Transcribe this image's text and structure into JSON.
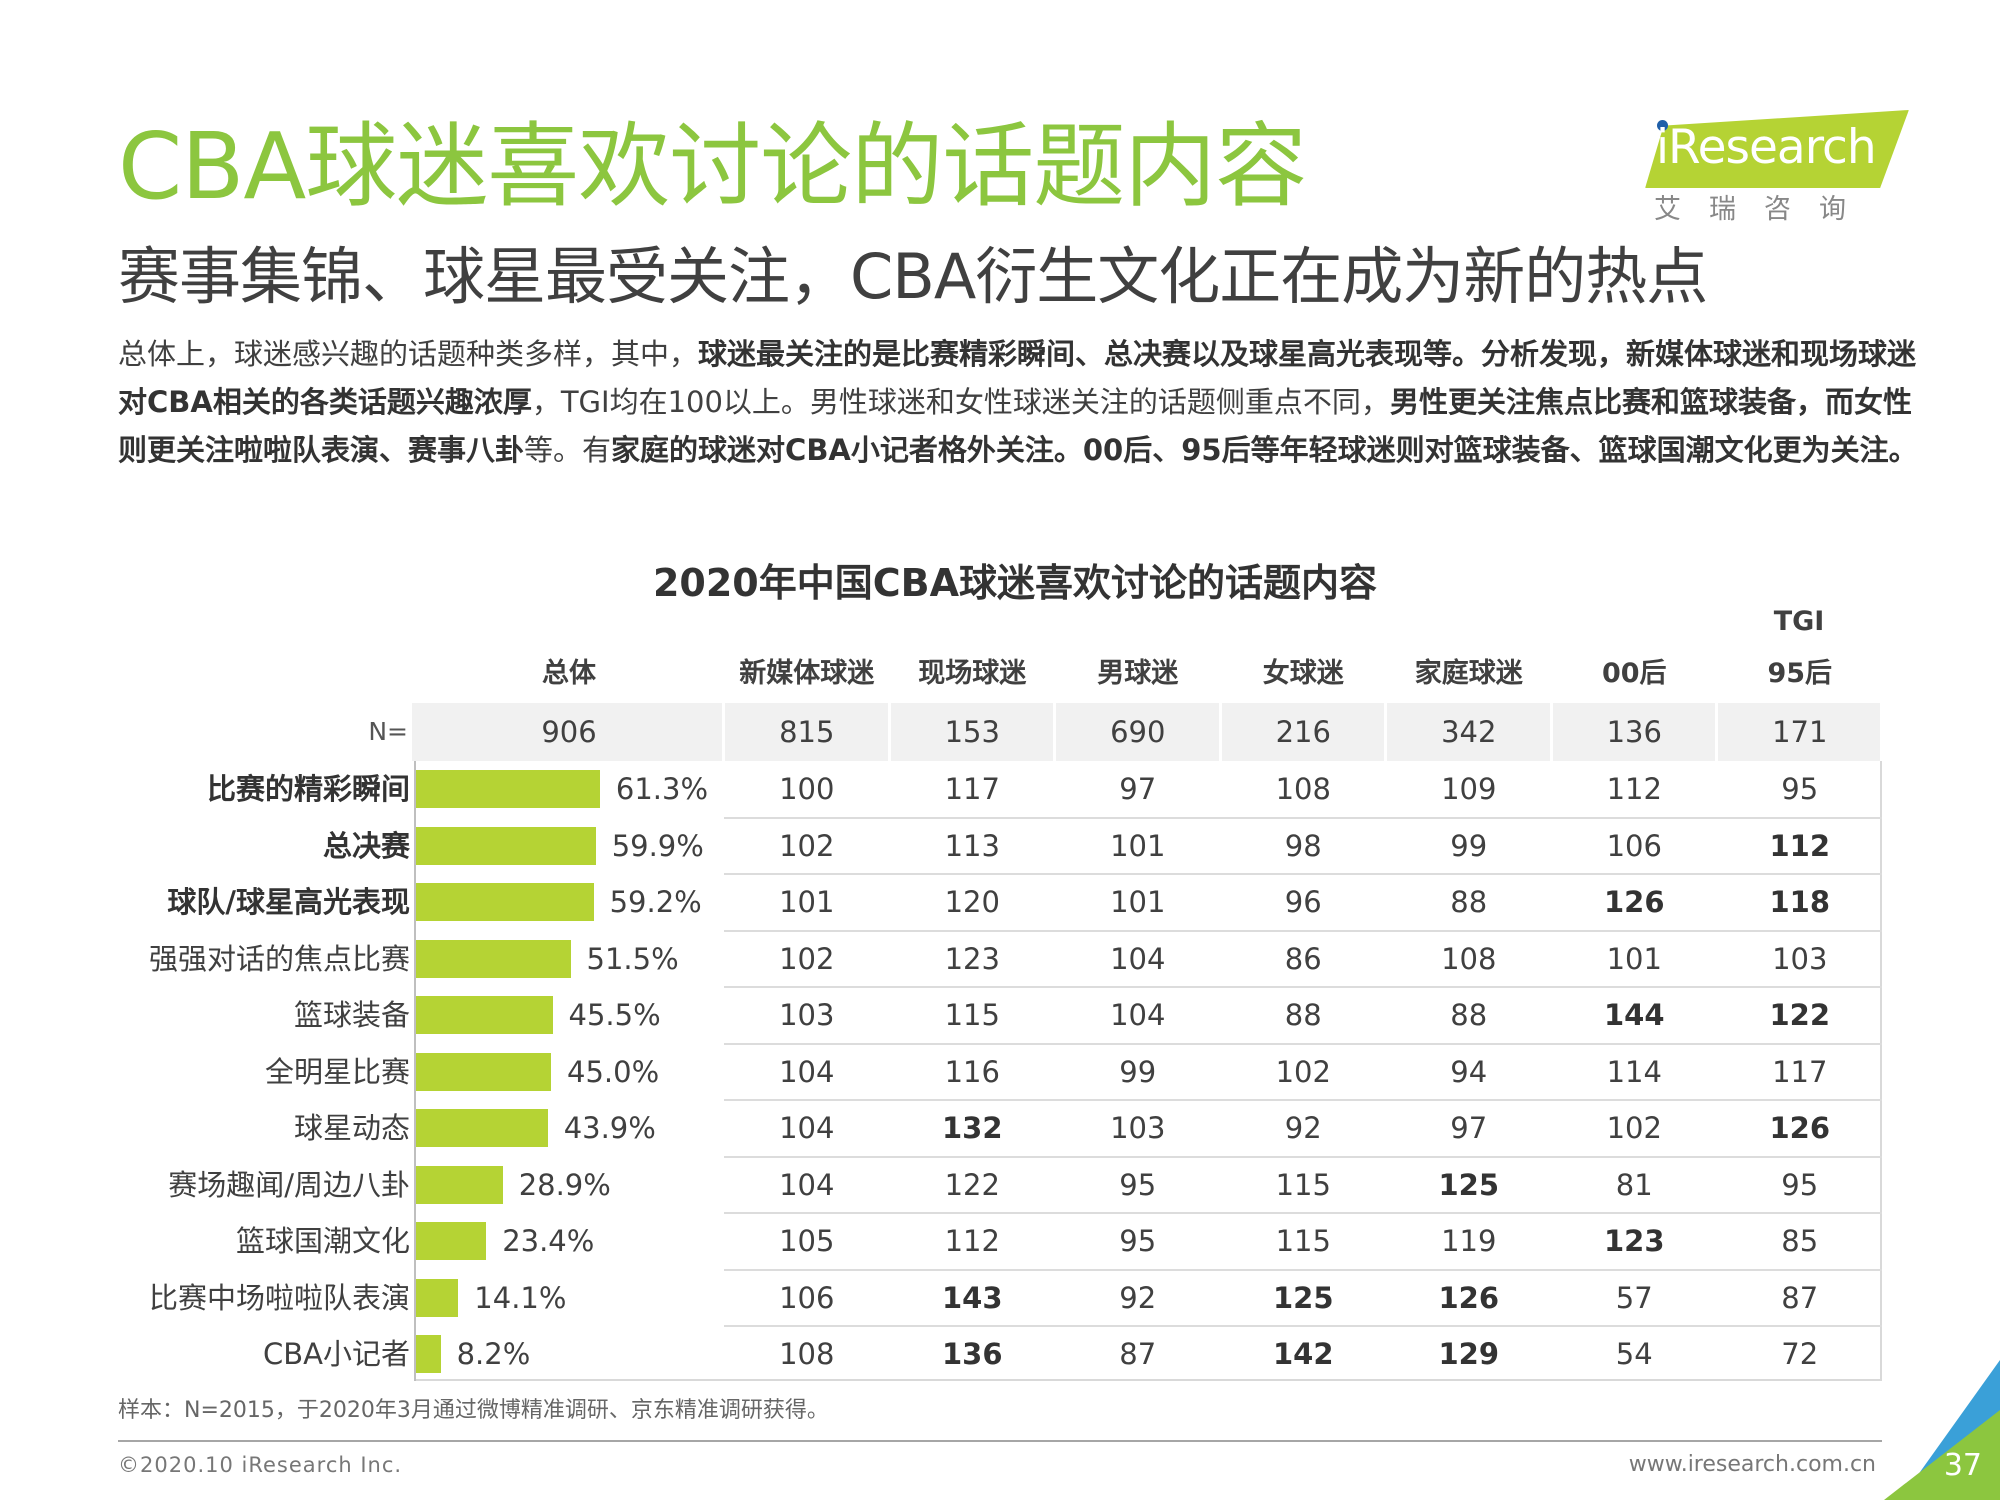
{
  "header": {
    "title": "CBA球迷喜欢讨论的话题内容",
    "subtitle": "赛事集锦、球星最受关注，CBA衍生文化正在成为新的热点"
  },
  "logo": {
    "name": "iResearch",
    "chinese": "艾瑞咨询"
  },
  "intro": {
    "p1": "总体上，球迷感兴趣的话题种类多样，其中，",
    "b1": "球迷最关注的是比赛精彩瞬间、总决赛以及球星高光表现等。分析发现，新媒体球迷和现场球迷对CBA相关的各类话题兴趣浓厚",
    "p2": "，TGI均在100以上。男性球迷和女性球迷关注的话题侧重点不同，",
    "b2": "男性更关注焦点比赛和篮球装备，而女性则更关注啦啦队表演、赛事八卦",
    "p3": "等。有",
    "b3": "家庭的球迷对CBA小记者格外关注。00后、95后等年轻球迷则对篮球装备、篮球国潮文化更为关注。"
  },
  "chart_data": {
    "type": "table",
    "title": "2020年中国CBA球迷喜欢讨论的话题内容",
    "group_label": "TGI",
    "n_label": "N=",
    "overall": {
      "name": "总体",
      "n": "906"
    },
    "columns": [
      "新媒体球迷",
      "现场球迷",
      "男球迷",
      "女球迷",
      "家庭球迷",
      "00后",
      "95后"
    ],
    "column_n": [
      "815",
      "153",
      "690",
      "216",
      "342",
      "136",
      "171"
    ],
    "bar_max": 100,
    "rows": [
      {
        "label": "比赛的精彩瞬间",
        "bold": true,
        "value": 61.3,
        "value_label": "61.3%",
        "tgi": [
          100,
          117,
          97,
          108,
          109,
          112,
          95
        ],
        "bold_cells": []
      },
      {
        "label": "总决赛",
        "bold": true,
        "value": 59.9,
        "value_label": "59.9%",
        "tgi": [
          102,
          113,
          101,
          98,
          99,
          106,
          112
        ],
        "bold_cells": [
          6
        ]
      },
      {
        "label": "球队/球星高光表现",
        "bold": true,
        "value": 59.2,
        "value_label": "59.2%",
        "tgi": [
          101,
          120,
          101,
          96,
          88,
          126,
          118
        ],
        "bold_cells": [
          5,
          6
        ]
      },
      {
        "label": "强强对话的焦点比赛",
        "bold": false,
        "value": 51.5,
        "value_label": "51.5%",
        "tgi": [
          102,
          123,
          104,
          86,
          108,
          101,
          103
        ],
        "bold_cells": []
      },
      {
        "label": "篮球装备",
        "bold": false,
        "value": 45.5,
        "value_label": "45.5%",
        "tgi": [
          103,
          115,
          104,
          88,
          88,
          144,
          122
        ],
        "bold_cells": [
          5,
          6
        ]
      },
      {
        "label": "全明星比赛",
        "bold": false,
        "value": 45.0,
        "value_label": "45.0%",
        "tgi": [
          104,
          116,
          99,
          102,
          94,
          114,
          117
        ],
        "bold_cells": []
      },
      {
        "label": "球星动态",
        "bold": false,
        "value": 43.9,
        "value_label": "43.9%",
        "tgi": [
          104,
          132,
          103,
          92,
          97,
          102,
          126
        ],
        "bold_cells": [
          1,
          6
        ]
      },
      {
        "label": "赛场趣闻/周边八卦",
        "bold": false,
        "value": 28.9,
        "value_label": "28.9%",
        "tgi": [
          104,
          122,
          95,
          115,
          125,
          81,
          95
        ],
        "bold_cells": [
          4
        ]
      },
      {
        "label": "篮球国潮文化",
        "bold": false,
        "value": 23.4,
        "value_label": "23.4%",
        "tgi": [
          105,
          112,
          95,
          115,
          119,
          123,
          85
        ],
        "bold_cells": [
          5
        ]
      },
      {
        "label": "比赛中场啦啦队表演",
        "bold": false,
        "value": 14.1,
        "value_label": "14.1%",
        "tgi": [
          106,
          143,
          92,
          125,
          126,
          57,
          87
        ],
        "bold_cells": [
          1,
          3,
          4
        ]
      },
      {
        "label": "CBA小记者",
        "bold": false,
        "value": 8.2,
        "value_label": "8.2%",
        "tgi": [
          108,
          136,
          87,
          142,
          129,
          54,
          72
        ],
        "bold_cells": [
          1,
          3,
          4
        ]
      }
    ],
    "bar_color": "#b5d334"
  },
  "footer": {
    "note": "样本：N=2015，于2020年3月通过微博精准调研、京东精准调研获得。",
    "copyright": "©2020.10 iResearch Inc.",
    "website": "www.iresearch.com.cn",
    "page": "37"
  },
  "colors": {
    "title_green": "#8cc63f",
    "bar_green": "#b5d334",
    "accent_blue": "#3aa0d8"
  }
}
